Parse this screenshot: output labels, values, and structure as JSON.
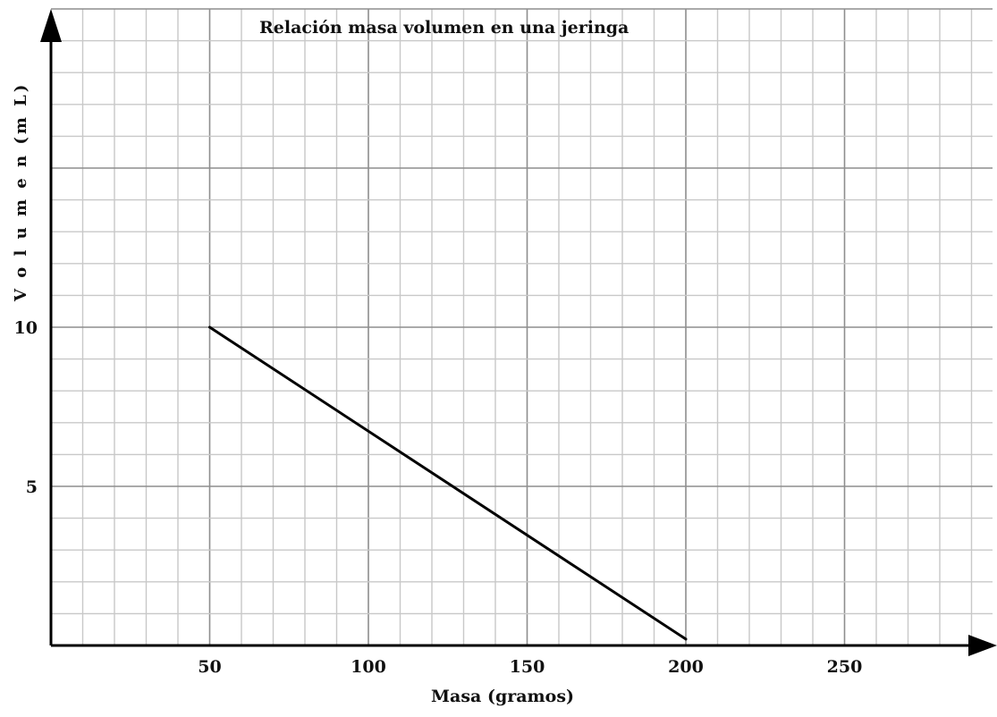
{
  "chart_data": {
    "type": "line",
    "title": "Relación masa volumen en una jeringa",
    "xlabel": "Masa (gramos)",
    "ylabel": "V o l u m e n  (m L)",
    "x_ticks": [
      "50",
      "100",
      "150",
      "200",
      "250"
    ],
    "y_ticks": [
      "5",
      "10"
    ],
    "xlim": [
      0,
      300
    ],
    "ylim": [
      0,
      20
    ],
    "grid": true,
    "series": [
      {
        "x": [
          50,
          200
        ],
        "y": [
          10,
          0.2
        ]
      }
    ],
    "colors": {
      "line": "#000000",
      "axis": "#000000",
      "grid_minor": "#c8c8c8",
      "grid_major": "#8e8e8e"
    }
  }
}
